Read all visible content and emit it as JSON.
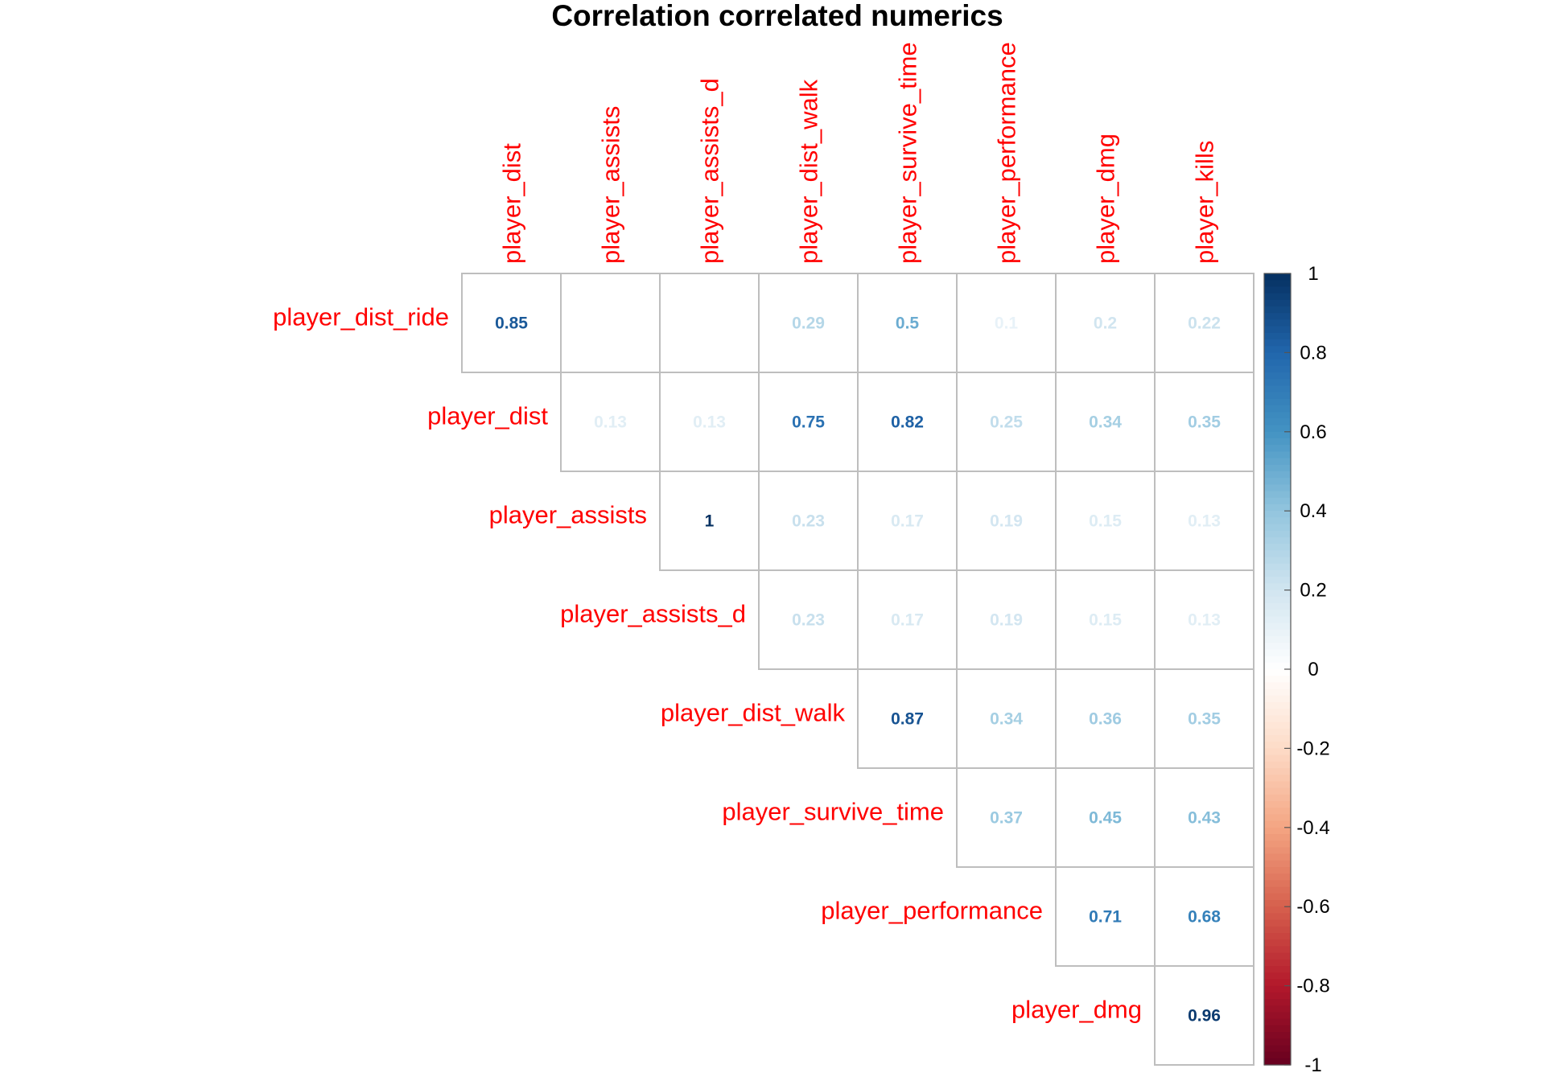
{
  "chart_data": {
    "type": "heatmap",
    "title": "Correlation correlated numerics",
    "columns": [
      "player_dist",
      "player_assists",
      "player_assists_d",
      "player_dist_walk",
      "player_survive_time",
      "player_performance",
      "player_dmg",
      "player_kills"
    ],
    "rows": [
      "player_dist_ride",
      "player_dist",
      "player_assists",
      "player_assists_d",
      "player_dist_walk",
      "player_survive_time",
      "player_performance",
      "player_dmg"
    ],
    "values": [
      [
        0.85,
        0.0,
        0.0,
        0.29,
        0.5,
        0.1,
        0.2,
        0.22
      ],
      [
        null,
        0.13,
        0.13,
        0.75,
        0.82,
        0.25,
        0.34,
        0.35
      ],
      [
        null,
        null,
        1,
        0.23,
        0.17,
        0.19,
        0.15,
        0.13
      ],
      [
        null,
        null,
        null,
        0.23,
        0.17,
        0.19,
        0.15,
        0.13
      ],
      [
        null,
        null,
        null,
        null,
        0.87,
        0.34,
        0.36,
        0.35
      ],
      [
        null,
        null,
        null,
        null,
        null,
        0.37,
        0.45,
        0.43
      ],
      [
        null,
        null,
        null,
        null,
        null,
        null,
        0.71,
        0.68
      ],
      [
        null,
        null,
        null,
        null,
        null,
        null,
        null,
        0.96
      ]
    ],
    "printed_labels": [
      [
        "0.85",
        "",
        "",
        "0.29",
        "0.5",
        "0.1",
        "0.2",
        "0.22"
      ],
      [
        "",
        "0.13",
        "0.13",
        "0.75",
        "0.82",
        "0.25",
        "0.34",
        "0.35"
      ],
      [
        "",
        "",
        "1",
        "0.23",
        "0.17",
        "0.19",
        "0.15",
        "0.13"
      ],
      [
        "",
        "",
        "",
        "0.23",
        "0.17",
        "0.19",
        "0.15",
        "0.13"
      ],
      [
        "",
        "",
        "",
        "",
        "0.87",
        "0.34",
        "0.36",
        "0.35"
      ],
      [
        "",
        "",
        "",
        "",
        "",
        "0.37",
        "0.45",
        "0.43"
      ],
      [
        "",
        "",
        "",
        "",
        "",
        "",
        "0.71",
        "0.68"
      ],
      [
        "",
        "",
        "",
        "",
        "",
        "",
        "",
        "0.96"
      ]
    ],
    "value_range": [
      -1,
      1
    ],
    "colorbar_ticks": [
      "1",
      "0.8",
      "0.6",
      "0.4",
      "0.2",
      "0",
      "-0.2",
      "-0.4",
      "-0.6",
      "-0.8",
      "-1"
    ],
    "legend": "colorbar-right",
    "grid": true,
    "colors": {
      "label": "#ff0000",
      "grid": "#bebebe",
      "colorscale": [
        "#67001f",
        "#b2182b",
        "#d6604d",
        "#f4a582",
        "#fddbc7",
        "#ffffff",
        "#d1e5f0",
        "#92c5de",
        "#4393c3",
        "#2166ac",
        "#053061"
      ]
    }
  }
}
